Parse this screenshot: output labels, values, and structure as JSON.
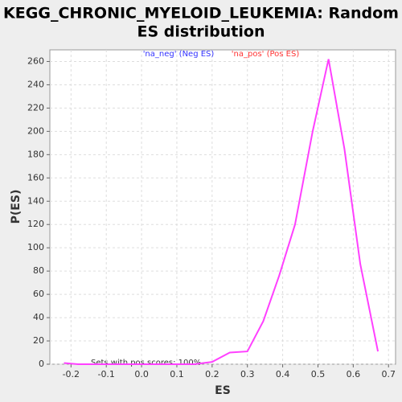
{
  "chart_data": {
    "type": "line",
    "title": [
      "KEGG_CHRONIC_MYELOID_LEUKEMIA: Random",
      "ES distribution"
    ],
    "x_label": "ES",
    "y_label": "P(ES)",
    "legend": [
      {
        "label": "'na_neg' (Neg ES)",
        "color": "#3333ff"
      },
      {
        "label": "'na_pos' (Pos ES)",
        "color": "#ff3333"
      }
    ],
    "annotation": "Sets with pos scores: 100%",
    "series": [
      {
        "name": "na_pos",
        "color": "#ff40ff",
        "x": [
          -0.22,
          -0.18,
          -0.13,
          0.15,
          0.2,
          0.25,
          0.3,
          0.345,
          0.39,
          0.435,
          0.485,
          0.53,
          0.575,
          0.62,
          0.67
        ],
        "values": [
          1,
          0,
          0,
          0,
          2,
          10,
          11,
          37,
          76,
          120,
          200,
          262,
          185,
          86,
          11
        ]
      }
    ],
    "xlim": [
      -0.26,
      0.72
    ],
    "ylim": [
      0,
      270
    ],
    "xticks": [
      -0.2,
      -0.1,
      {
        "value": 0,
        "label": "0.0"
      },
      0.1,
      0.2,
      0.3,
      0.4,
      0.5,
      0.6,
      0.7
    ],
    "yticks": [
      0,
      20,
      40,
      60,
      80,
      100,
      120,
      140,
      160,
      180,
      200,
      220,
      240,
      260
    ],
    "grid": true
  }
}
